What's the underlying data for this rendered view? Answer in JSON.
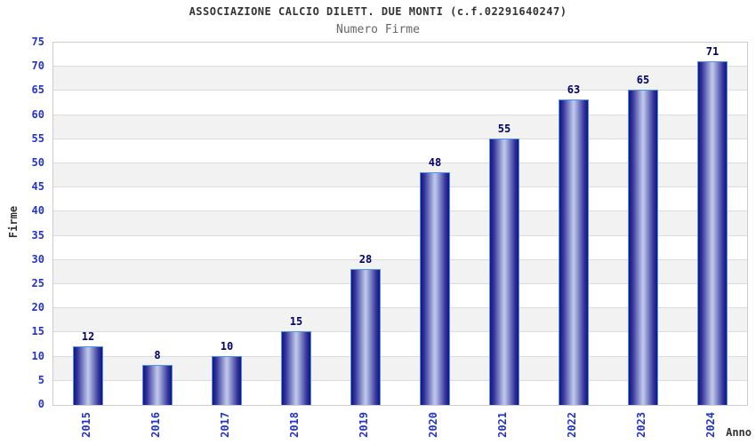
{
  "chart_data": {
    "type": "bar",
    "title": "ASSOCIAZIONE CALCIO DILETT. DUE MONTI (c.f.02291640247)",
    "subtitle": "Numero Firme",
    "xlabel": "Anno",
    "ylabel": "Firme",
    "categories": [
      "2015",
      "2016",
      "2017",
      "2018",
      "2019",
      "2020",
      "2021",
      "2022",
      "2023",
      "2024"
    ],
    "values": [
      12,
      8,
      10,
      15,
      28,
      48,
      55,
      63,
      65,
      71
    ],
    "ylim": [
      0,
      75
    ],
    "ytick_step": 5,
    "grid": "horizontal-bands-alternating",
    "legend": "none",
    "colors": {
      "tick_label": "#2233cc",
      "value_label": "#000066",
      "bar_edge_dark": "#15157d",
      "bar_center_light": "#bcc5e8",
      "bar_border": "#4d94e8",
      "band_gray": "#f2f2f2",
      "band_white": "#ffffff",
      "gridline": "#dcdcdc",
      "plot_border": "#cccccc",
      "title_color": "#333333",
      "subtitle_color": "#666666"
    }
  }
}
